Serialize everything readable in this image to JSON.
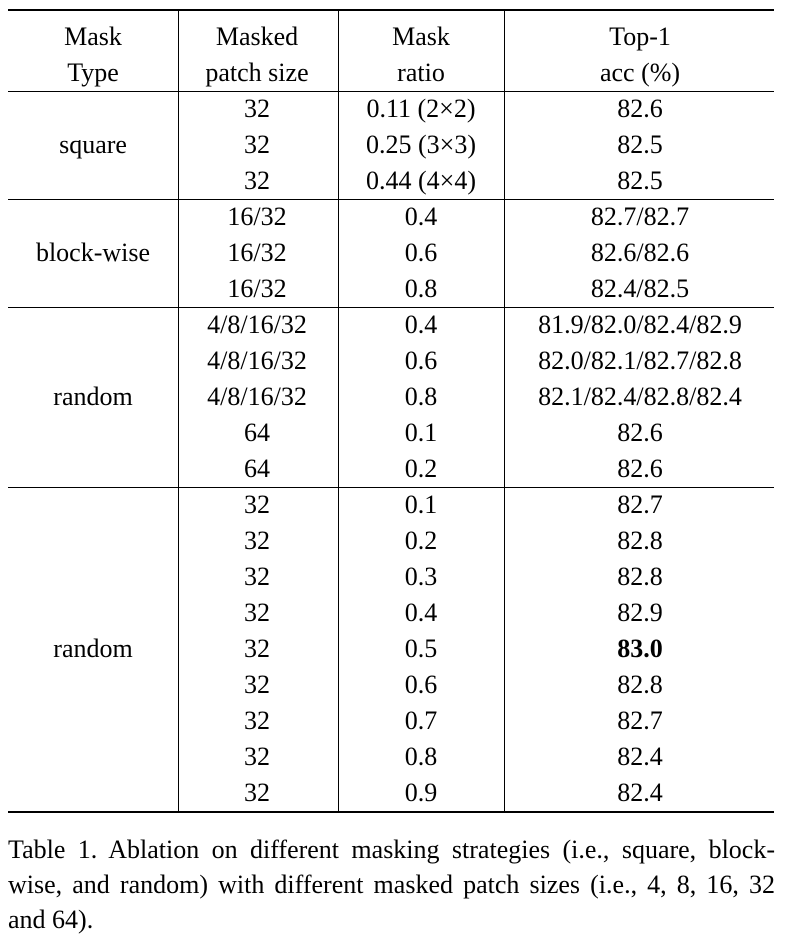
{
  "table": {
    "header": [
      [
        "Mask",
        "Type"
      ],
      [
        "Masked",
        "patch size"
      ],
      [
        "Mask",
        "ratio"
      ],
      [
        "Top-1",
        "acc (%)"
      ]
    ],
    "groups": [
      {
        "type": "square",
        "rows": [
          [
            "32",
            "0.11 (2×2)",
            "82.6"
          ],
          [
            "32",
            "0.25 (3×3)",
            "82.5"
          ],
          [
            "32",
            "0.44 (4×4)",
            "82.5"
          ]
        ]
      },
      {
        "type": "block-wise",
        "rows": [
          [
            "16/32",
            "0.4",
            "82.7/82.7"
          ],
          [
            "16/32",
            "0.6",
            "82.6/82.6"
          ],
          [
            "16/32",
            "0.8",
            "82.4/82.5"
          ]
        ]
      },
      {
        "type": "random",
        "rows": [
          [
            "4/8/16/32",
            "0.4",
            "81.9/82.0/82.4/82.9"
          ],
          [
            "4/8/16/32",
            "0.6",
            "82.0/82.1/82.7/82.8"
          ],
          [
            "4/8/16/32",
            "0.8",
            "82.1/82.4/82.8/82.4"
          ],
          [
            "64",
            "0.1",
            "82.6"
          ],
          [
            "64",
            "0.2",
            "82.6"
          ]
        ]
      },
      {
        "type": "random",
        "rows": [
          [
            "32",
            "0.1",
            "82.7"
          ],
          [
            "32",
            "0.2",
            "82.8"
          ],
          [
            "32",
            "0.3",
            "82.8"
          ],
          [
            "32",
            "0.4",
            "82.9"
          ],
          [
            "32",
            "0.5",
            "83.0"
          ],
          [
            "32",
            "0.6",
            "82.8"
          ],
          [
            "32",
            "0.7",
            "82.7"
          ],
          [
            "32",
            "0.8",
            "82.4"
          ],
          [
            "32",
            "0.9",
            "82.4"
          ]
        ],
        "bold_cell": [
          4,
          2
        ]
      }
    ]
  },
  "caption": "Table 1.  Ablation on different masking strategies (i.e., square, block-wise, and random) with different masked patch sizes (i.e., 4, 8, 16, 32 and 64)."
}
